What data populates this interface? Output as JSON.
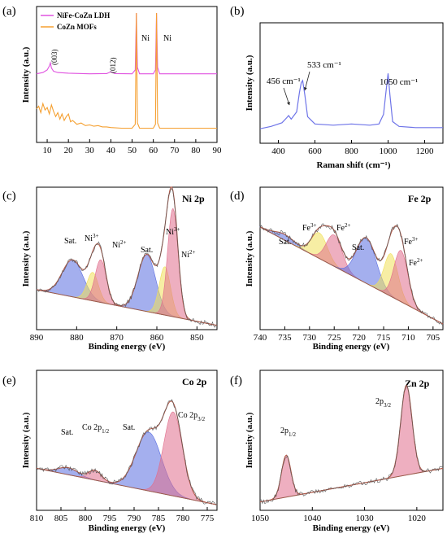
{
  "chart_data": [
    {
      "panel": "(a)",
      "type": "line",
      "xlabel": "",
      "ylabel": "Intensity (a.u.)",
      "xlim": [
        5,
        90
      ],
      "xticks": [
        10,
        20,
        30,
        40,
        50,
        60,
        70,
        80,
        90
      ],
      "y_ticks_shown": false,
      "legend_position": "top-left",
      "annotations": [
        {
          "text": "(003)",
          "x": 11,
          "rotated": true
        },
        {
          "text": "(012)",
          "x": 40,
          "rotated": true
        },
        {
          "text": "Ni",
          "x": 53
        },
        {
          "text": "Ni",
          "x": 64
        }
      ],
      "series": [
        {
          "name": "NiFe-CoZn LDH",
          "color": "#e052e0",
          "x": [
            5,
            8,
            10,
            11,
            11.5,
            12,
            13,
            15,
            20,
            30,
            38,
            40,
            42,
            50,
            51.5,
            52,
            52.5,
            53.5,
            60,
            61,
            61.5,
            62,
            63,
            70,
            80,
            90
          ],
          "y": [
            0.53,
            0.54,
            0.56,
            0.59,
            0.615,
            0.575,
            0.55,
            0.54,
            0.535,
            0.53,
            0.532,
            0.545,
            0.532,
            0.53,
            0.56,
            1.0,
            0.58,
            0.53,
            0.53,
            0.56,
            1.0,
            0.58,
            0.53,
            0.53,
            0.53,
            0.53
          ]
        },
        {
          "name": "CoZn MOFs",
          "color": "#f5a031",
          "x": [
            5,
            6,
            7,
            8,
            9,
            10,
            11,
            12,
            13,
            14,
            15,
            16,
            17,
            18,
            19,
            20,
            21,
            22,
            24,
            26,
            28,
            30,
            32,
            34,
            36,
            38,
            40,
            45,
            50,
            51.5,
            52,
            52.5,
            53.5,
            60,
            61,
            61.5,
            62,
            63,
            70,
            80,
            90
          ],
          "y": [
            0.26,
            0.28,
            0.23,
            0.3,
            0.25,
            0.27,
            0.22,
            0.29,
            0.24,
            0.2,
            0.23,
            0.18,
            0.22,
            0.17,
            0.2,
            0.22,
            0.16,
            0.17,
            0.14,
            0.15,
            0.13,
            0.135,
            0.125,
            0.13,
            0.12,
            0.12,
            0.115,
            0.11,
            0.11,
            0.14,
            1.0,
            0.15,
            0.11,
            0.11,
            0.14,
            1.0,
            0.15,
            0.11,
            0.11,
            0.11,
            0.11
          ]
        }
      ]
    },
    {
      "panel": "(b)",
      "type": "line",
      "xlabel": "Raman shift (cm⁻¹)",
      "ylabel": "Intensity (a.u.)",
      "xlim": [
        300,
        1300
      ],
      "xticks": [
        400,
        600,
        800,
        1000,
        1200
      ],
      "y_ticks_shown": false,
      "annotations": [
        {
          "text": "456 cm⁻¹",
          "x": 456
        },
        {
          "text": "533 cm⁻¹",
          "x": 533
        },
        {
          "text": "1050 cm⁻¹",
          "x": 1000
        }
      ],
      "series": [
        {
          "color": "#6e74e8",
          "x": [
            300,
            360,
            420,
            445,
            456,
            470,
            500,
            515,
            525,
            533,
            545,
            560,
            600,
            700,
            800,
            900,
            950,
            975,
            990,
            1000,
            1010,
            1025,
            1060,
            1150,
            1250,
            1300
          ],
          "y": [
            0.12,
            0.14,
            0.17,
            0.21,
            0.23,
            0.2,
            0.26,
            0.42,
            0.5,
            0.52,
            0.4,
            0.22,
            0.16,
            0.15,
            0.16,
            0.15,
            0.16,
            0.24,
            0.45,
            0.58,
            0.4,
            0.18,
            0.14,
            0.13,
            0.13,
            0.13
          ]
        }
      ]
    },
    {
      "panel": "(c)",
      "type": "line",
      "title": "Ni 2p",
      "xlabel": "Binding energy (eV)",
      "ylabel": "Intensity (a.u.)",
      "xlim": [
        890,
        845
      ],
      "xticks": [
        890,
        880,
        870,
        860,
        850
      ],
      "y_ticks_shown": false,
      "baseline": {
        "start": 0.28,
        "end": 0.03
      },
      "components": [
        {
          "name": "Sat.",
          "color": "#5a6ee0",
          "center": 881.0,
          "height": 0.26,
          "width": 2.6
        },
        {
          "name": "Ni3+",
          "color": "#f0e05a",
          "center": 876.0,
          "height": 0.2,
          "width": 1.4
        },
        {
          "name": "Ni2+",
          "color": "#e06e8c",
          "center": 874.0,
          "height": 0.3,
          "width": 1.4
        },
        {
          "name": "Sat.",
          "color": "#5a6ee0",
          "center": 862.5,
          "height": 0.4,
          "width": 2.2
        },
        {
          "name": "Ni3+",
          "color": "#f0e05a",
          "center": 858.0,
          "height": 0.34,
          "width": 1.4
        },
        {
          "name": "Ni2+",
          "color": "#e06e8c",
          "center": 856.0,
          "height": 0.76,
          "width": 1.3
        }
      ],
      "annotations": [
        {
          "text": "Sat.",
          "x": 881
        },
        {
          "text": "Ni3+",
          "x": 876
        },
        {
          "text": "Ni2+",
          "x": 872
        },
        {
          "text": "Sat.",
          "x": 862.5
        },
        {
          "text": "Ni3+",
          "x": 858
        },
        {
          "text": "Ni2+",
          "x": 853
        }
      ]
    },
    {
      "panel": "(d)",
      "type": "line",
      "title": "Fe 2p",
      "xlabel": "Binding energy (eV)",
      "ylabel": "Intensity (a.u.)",
      "xlim": [
        740,
        703
      ],
      "xticks": [
        740,
        735,
        730,
        725,
        720,
        715,
        710,
        705
      ],
      "y_ticks_shown": false,
      "baseline": {
        "start": 0.72,
        "end": 0.04
      },
      "components": [
        {
          "name": "Sat.",
          "color": "#5a6ee0",
          "center": 735.0,
          "height": 0.04,
          "width": 2.0
        },
        {
          "name": "Fe3+",
          "color": "#f0e05a",
          "center": 728.0,
          "height": 0.18,
          "width": 1.6
        },
        {
          "name": "Fe2+",
          "color": "#e06e8c",
          "center": 725.0,
          "height": 0.22,
          "width": 1.6
        },
        {
          "name": "Sat.",
          "color": "#5a6ee0",
          "center": 718.5,
          "height": 0.32,
          "width": 2.0
        },
        {
          "name": "Fe3+",
          "color": "#f0e05a",
          "center": 713.5,
          "height": 0.3,
          "width": 1.4
        },
        {
          "name": "Fe2+",
          "color": "#e06e8c",
          "center": 711.5,
          "height": 0.36,
          "width": 1.4
        }
      ],
      "annotations": [
        {
          "text": "Sat.",
          "x": 735
        },
        {
          "text": "Fe3+",
          "x": 729
        },
        {
          "text": "Fe2+",
          "x": 724
        },
        {
          "text": "Sat.",
          "x": 720
        },
        {
          "text": "Fe3+",
          "x": 709
        },
        {
          "text": "Fe2+",
          "x": 709
        }
      ]
    },
    {
      "panel": "(e)",
      "type": "line",
      "title": "Co 2p",
      "xlabel": "Binding energy (eV)",
      "ylabel": "Intensity (a.u.)",
      "xlim": [
        810,
        773
      ],
      "xticks": [
        810,
        805,
        800,
        795,
        790,
        785,
        780,
        775
      ],
      "y_ticks_shown": false,
      "baseline": {
        "start": 0.3,
        "end": 0.04
      },
      "components": [
        {
          "name": "Sat.",
          "color": "#5a6ee0",
          "center": 803.5,
          "height": 0.05,
          "width": 2.0
        },
        {
          "name": "Co 2p1/2",
          "color": "#e06e8c",
          "center": 798.0,
          "height": 0.07,
          "width": 1.3
        },
        {
          "name": "Sat.",
          "color": "#5a6ee0",
          "center": 787.0,
          "height": 0.42,
          "width": 2.6
        },
        {
          "name": "Co 2p3/2",
          "color": "#e06e8c",
          "center": 782.0,
          "height": 0.6,
          "width": 1.9
        }
      ],
      "annotations": [
        {
          "text": "Sat.",
          "x": 803.5
        },
        {
          "text": "Co 2p1/2",
          "x": 799
        },
        {
          "text": "Sat.",
          "x": 789
        },
        {
          "text": "Co 2p3/2",
          "x": 779
        }
      ]
    },
    {
      "panel": "(f)",
      "type": "line",
      "title": "Zn 2p",
      "xlabel": "Binding energy (eV)",
      "ylabel": "Intensity (a.u.)",
      "xlim": [
        1050,
        1015
      ],
      "xticks": [
        1050,
        1040,
        1030,
        1020
      ],
      "y_ticks_shown": false,
      "baseline": {
        "start": 0.06,
        "end": 0.3
      },
      "components": [
        {
          "name": "2p1/2",
          "color": "#e06e8c",
          "center": 1045.0,
          "height": 0.3,
          "width": 0.9
        },
        {
          "name": "2p3/2",
          "color": "#e06e8c",
          "center": 1022.0,
          "height": 0.64,
          "width": 1.1
        }
      ],
      "annotations": [
        {
          "text": "2p1/2",
          "x": 1045
        },
        {
          "text": "2p3/2",
          "x": 1022
        }
      ]
    }
  ]
}
